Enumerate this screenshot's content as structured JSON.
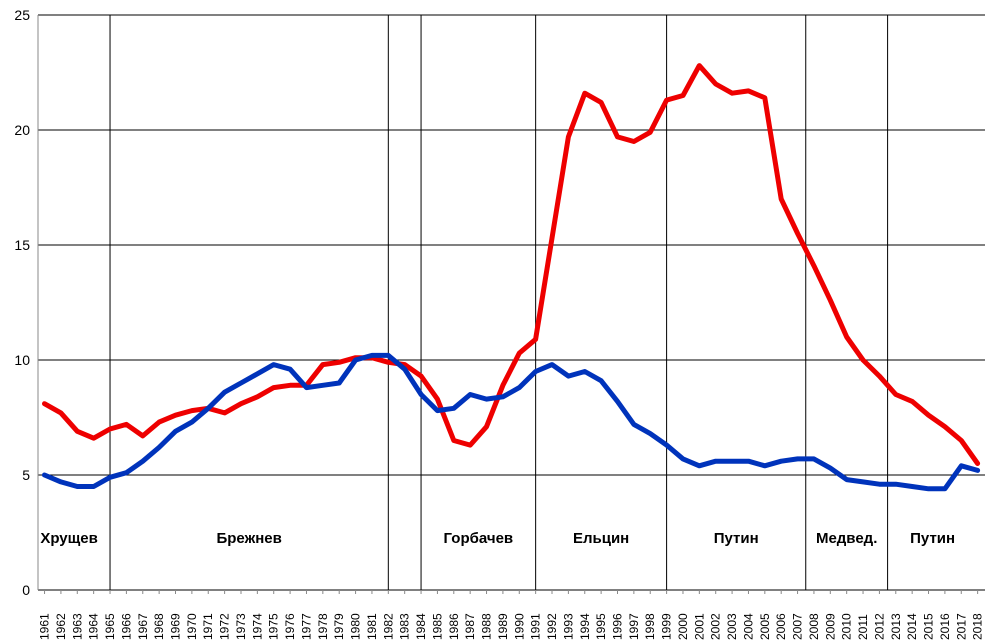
{
  "chart_data": {
    "type": "line",
    "title": "",
    "xlabel": "",
    "ylabel": "",
    "ylim": [
      0,
      25
    ],
    "yticks": [
      0,
      5,
      10,
      15,
      20,
      25
    ],
    "grid": "horizontal",
    "x": [
      1961,
      1962,
      1963,
      1964,
      1965,
      1966,
      1967,
      1968,
      1969,
      1970,
      1971,
      1972,
      1973,
      1974,
      1975,
      1976,
      1977,
      1978,
      1979,
      1980,
      1981,
      1982,
      1983,
      1984,
      1985,
      1986,
      1987,
      1988,
      1989,
      1990,
      1991,
      1992,
      1993,
      1994,
      1995,
      1996,
      1997,
      1998,
      1999,
      2000,
      2001,
      2002,
      2003,
      2004,
      2005,
      2006,
      2007,
      2008,
      2009,
      2010,
      2011,
      2012,
      2013,
      2014,
      2015,
      2016,
      2017,
      2018
    ],
    "x_tick_labels": [
      "1961",
      "1962",
      "1963",
      "1964",
      "1965",
      "1966",
      "1967",
      "1968",
      "1969",
      "1970",
      "1971",
      "1972",
      "1973",
      "1974",
      "1975",
      "1976",
      "1977",
      "1978",
      "1979",
      "1980",
      "1981",
      "1982",
      "1983",
      "1984",
      "1985",
      "1986",
      "1987",
      "1988",
      "1989",
      "1990",
      "1991",
      "1992",
      "1993",
      "1994",
      "1995",
      "1996",
      "1997",
      "1998",
      "1999",
      "2000",
      "2001",
      "2002",
      "2003",
      "2004",
      "2005",
      "2006",
      "2007",
      "2008",
      "2009",
      "2010",
      "2011",
      "2012",
      "2013",
      "2014",
      "2015",
      "2016",
      "2017",
      "2018"
    ],
    "series": [
      {
        "color": "#ee0000",
        "values": [
          8.1,
          7.7,
          6.9,
          6.6,
          7.0,
          7.2,
          6.7,
          7.3,
          7.6,
          7.8,
          7.9,
          7.7,
          8.1,
          8.4,
          8.8,
          8.9,
          8.9,
          9.8,
          9.9,
          10.1,
          10.1,
          9.9,
          9.8,
          9.3,
          8.3,
          6.5,
          6.3,
          7.1,
          8.9,
          10.3,
          10.9,
          15.3,
          19.7,
          21.6,
          21.2,
          19.7,
          19.5,
          19.9,
          21.3,
          21.5,
          22.8,
          22.0,
          21.6,
          21.7,
          21.4,
          17.0,
          15.5,
          14.1,
          12.6,
          11.0,
          10.0,
          9.3,
          8.5,
          8.2,
          7.6,
          7.1,
          6.5,
          5.5
        ]
      },
      {
        "color": "#0033bb",
        "values": [
          5.0,
          4.7,
          4.5,
          4.5,
          4.9,
          5.1,
          5.6,
          6.2,
          6.9,
          7.3,
          7.9,
          8.6,
          9.0,
          9.4,
          9.8,
          9.6,
          8.8,
          8.9,
          9.0,
          10.0,
          10.2,
          10.2,
          9.6,
          8.5,
          7.8,
          7.9,
          8.5,
          8.3,
          8.4,
          8.8,
          9.5,
          9.8,
          9.3,
          9.5,
          9.1,
          8.2,
          7.2,
          6.8,
          6.3,
          5.7,
          5.4,
          5.6,
          5.6,
          5.6,
          5.4,
          5.6,
          5.7,
          5.7,
          5.3,
          4.8,
          4.7,
          4.6,
          4.6,
          4.5,
          4.4,
          4.4,
          5.4,
          5.2
        ]
      }
    ],
    "eras": [
      {
        "label": "Хрущев",
        "start": 1961,
        "end": 1964
      },
      {
        "label": "Брежнев",
        "start": 1965,
        "end": 1982
      },
      {
        "label": "",
        "start": 1982,
        "end": 1984
      },
      {
        "label": "Горбачев",
        "start": 1984,
        "end": 1991
      },
      {
        "label": "Ельцин",
        "start": 1991,
        "end": 1999
      },
      {
        "label": "Путин",
        "start": 1999,
        "end": 2007.5
      },
      {
        "label": "Медвед.",
        "start": 2007.5,
        "end": 2012.5
      },
      {
        "label": "Путин",
        "start": 2012.5,
        "end": 2018
      }
    ],
    "era_boundaries": [
      1965,
      1982,
      1984,
      1991,
      1999,
      2007.5,
      2012.5
    ]
  }
}
